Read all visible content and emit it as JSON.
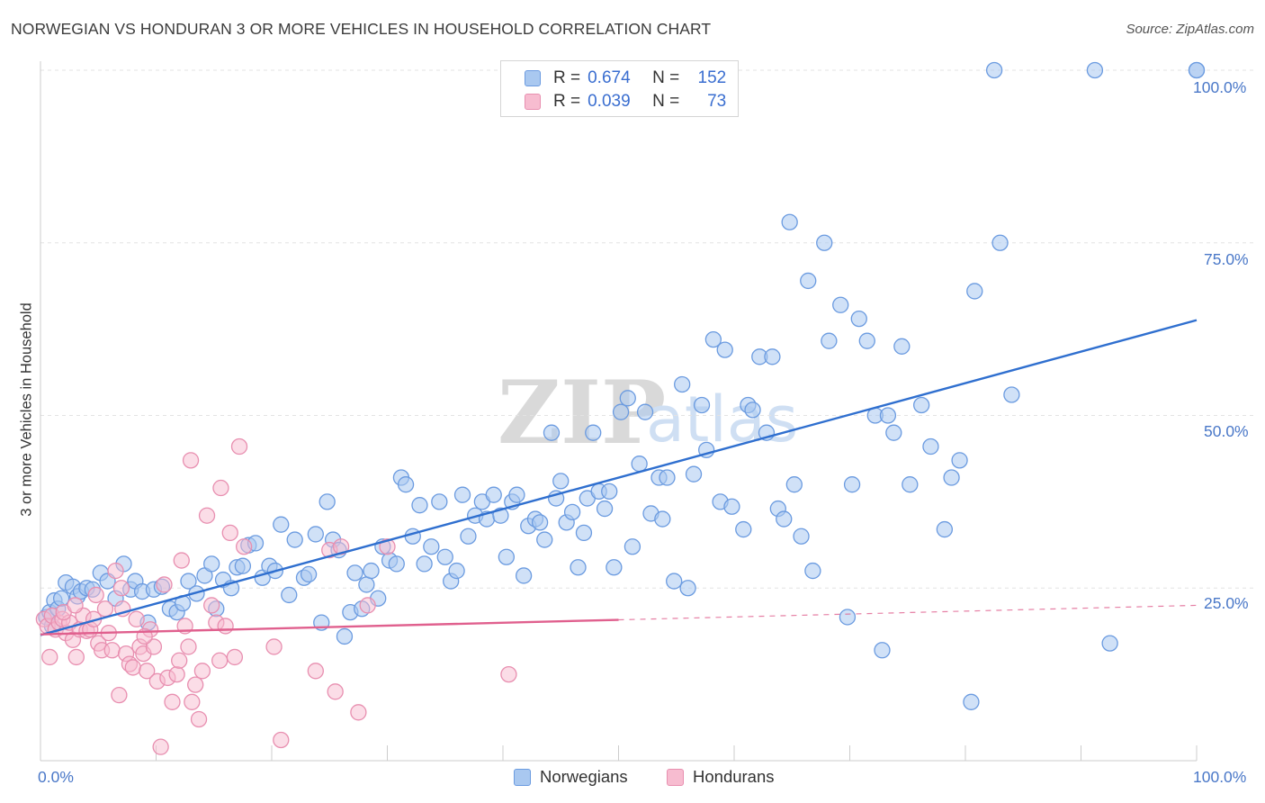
{
  "title": "NORWEGIAN VS HONDURAN 3 OR MORE VEHICLES IN HOUSEHOLD CORRELATION CHART",
  "source": "Source: ZipAtlas.com",
  "watermark": {
    "zip": "ZIP",
    "atlas": "atlas"
  },
  "legend": {
    "rows": [
      {
        "r_label": "R =",
        "r_value": "0.674",
        "n_label": "N =",
        "n_value": "152",
        "color": "#a9c8f0",
        "border": "#6b9be0"
      },
      {
        "r_label": "R =",
        "r_value": "0.039",
        "n_label": "N =",
        "n_value": "73",
        "color": "#f7bcd0",
        "border": "#e88fb0"
      }
    ]
  },
  "bottom_legend": [
    "Norwegians",
    "Hondurans"
  ],
  "axis_labels": {
    "x_min": "0.0%",
    "x_max": "100.0%",
    "y_25": "25.0%",
    "y_50": "50.0%",
    "y_75": "75.0%",
    "y_100": "100.0%"
  },
  "chart_data": {
    "type": "scatter",
    "title": "NORWEGIAN VS HONDURAN 3 OR MORE VEHICLES IN HOUSEHOLD CORRELATION CHART",
    "xlabel": "",
    "ylabel": "3 or more Vehicles in Household",
    "xlim": [
      0,
      100
    ],
    "ylim": [
      0,
      100
    ],
    "x_ticks": [
      0,
      10,
      20,
      30,
      40,
      50,
      60,
      70,
      80,
      90,
      100
    ],
    "y_ticks": [
      25,
      50,
      75,
      100
    ],
    "grid": true,
    "colors": {
      "norwegians": "#6b9be0",
      "norwegians_fill": "#a9c8f0",
      "hondurans": "#e88fb0",
      "hondurans_fill": "#f7bcd0",
      "trend_norwegians": "#2f6fcf",
      "trend_hondurans": "#e0608e"
    },
    "series": [
      {
        "name": "Norwegians",
        "trend": {
          "x": [
            0,
            100
          ],
          "y": [
            18.2,
            63.8
          ]
        },
        "points": [
          [
            0.5,
            20.8
          ],
          [
            0.8,
            21.5
          ],
          [
            1.0,
            19.5
          ],
          [
            1.2,
            23.2
          ],
          [
            1.5,
            22.0
          ],
          [
            1.8,
            23.5
          ],
          [
            2.2,
            25.8
          ],
          [
            2.8,
            25.2
          ],
          [
            3.2,
            23.8
          ],
          [
            3.5,
            24.5
          ],
          [
            4.0,
            25.0
          ],
          [
            4.5,
            24.8
          ],
          [
            5.2,
            27.2
          ],
          [
            5.8,
            26.0
          ],
          [
            6.5,
            23.5
          ],
          [
            7.2,
            28.5
          ],
          [
            7.8,
            24.8
          ],
          [
            8.2,
            26.0
          ],
          [
            8.8,
            24.5
          ],
          [
            9.3,
            20.0
          ],
          [
            9.8,
            24.8
          ],
          [
            10.5,
            25.2
          ],
          [
            11.2,
            22.0
          ],
          [
            11.8,
            21.5
          ],
          [
            12.3,
            22.8
          ],
          [
            12.8,
            26.0
          ],
          [
            13.5,
            24.2
          ],
          [
            14.2,
            26.8
          ],
          [
            14.8,
            28.5
          ],
          [
            15.2,
            22.0
          ],
          [
            15.8,
            26.2
          ],
          [
            16.5,
            25.0
          ],
          [
            17.0,
            28.0
          ],
          [
            17.5,
            28.2
          ],
          [
            18.0,
            31.2
          ],
          [
            18.6,
            31.5
          ],
          [
            19.2,
            26.5
          ],
          [
            19.8,
            28.2
          ],
          [
            20.3,
            27.5
          ],
          [
            20.8,
            34.2
          ],
          [
            21.5,
            24.0
          ],
          [
            22.0,
            32.0
          ],
          [
            22.8,
            26.5
          ],
          [
            23.2,
            27.0
          ],
          [
            23.8,
            32.8
          ],
          [
            24.3,
            20.0
          ],
          [
            24.8,
            37.5
          ],
          [
            25.3,
            32.0
          ],
          [
            25.8,
            30.5
          ],
          [
            26.3,
            18.0
          ],
          [
            26.8,
            21.5
          ],
          [
            27.2,
            27.2
          ],
          [
            27.8,
            22.0
          ],
          [
            28.2,
            25.5
          ],
          [
            28.6,
            27.5
          ],
          [
            29.2,
            23.5
          ],
          [
            29.6,
            31.0
          ],
          [
            30.2,
            29.0
          ],
          [
            30.8,
            28.5
          ],
          [
            31.2,
            41.0
          ],
          [
            31.6,
            40.0
          ],
          [
            32.2,
            32.5
          ],
          [
            32.8,
            37.0
          ],
          [
            33.2,
            28.5
          ],
          [
            33.8,
            31.0
          ],
          [
            34.5,
            37.5
          ],
          [
            35.0,
            29.5
          ],
          [
            35.5,
            26.0
          ],
          [
            36.0,
            27.5
          ],
          [
            36.5,
            38.5
          ],
          [
            37.0,
            32.5
          ],
          [
            37.6,
            35.5
          ],
          [
            38.2,
            37.5
          ],
          [
            38.6,
            35.0
          ],
          [
            39.2,
            38.5
          ],
          [
            39.8,
            35.5
          ],
          [
            40.3,
            29.5
          ],
          [
            40.8,
            37.5
          ],
          [
            41.2,
            38.5
          ],
          [
            41.8,
            26.8
          ],
          [
            42.2,
            34.0
          ],
          [
            42.8,
            35.0
          ],
          [
            43.2,
            34.5
          ],
          [
            43.6,
            32.0
          ],
          [
            44.2,
            47.5
          ],
          [
            44.6,
            38.0
          ],
          [
            45.0,
            40.5
          ],
          [
            45.5,
            34.5
          ],
          [
            46.0,
            36.0
          ],
          [
            46.5,
            28.0
          ],
          [
            47.0,
            33.0
          ],
          [
            47.3,
            38.0
          ],
          [
            47.8,
            47.5
          ],
          [
            48.3,
            39.0
          ],
          [
            48.8,
            36.5
          ],
          [
            49.2,
            39.0
          ],
          [
            49.6,
            28.0
          ],
          [
            50.2,
            50.5
          ],
          [
            50.8,
            52.5
          ],
          [
            51.2,
            31.0
          ],
          [
            51.8,
            43.0
          ],
          [
            52.3,
            50.5
          ],
          [
            52.8,
            35.8
          ],
          [
            53.5,
            41.0
          ],
          [
            53.8,
            35.0
          ],
          [
            54.2,
            41.0
          ],
          [
            54.8,
            26.0
          ],
          [
            55.5,
            54.5
          ],
          [
            56.0,
            25.0
          ],
          [
            56.5,
            41.5
          ],
          [
            57.2,
            51.5
          ],
          [
            57.6,
            45.0
          ],
          [
            58.2,
            61.0
          ],
          [
            58.8,
            37.5
          ],
          [
            59.2,
            59.5
          ],
          [
            59.8,
            36.8
          ],
          [
            60.8,
            33.5
          ],
          [
            61.2,
            51.5
          ],
          [
            61.6,
            50.8
          ],
          [
            62.2,
            58.5
          ],
          [
            62.8,
            47.5
          ],
          [
            63.3,
            58.5
          ],
          [
            63.8,
            36.5
          ],
          [
            64.3,
            35.0
          ],
          [
            64.8,
            78.0
          ],
          [
            65.2,
            40.0
          ],
          [
            65.8,
            32.5
          ],
          [
            66.4,
            69.5
          ],
          [
            66.8,
            27.5
          ],
          [
            67.8,
            75.0
          ],
          [
            68.2,
            60.8
          ],
          [
            69.2,
            66.0
          ],
          [
            69.8,
            20.8
          ],
          [
            70.2,
            40.0
          ],
          [
            70.8,
            64.0
          ],
          [
            71.5,
            60.8
          ],
          [
            72.2,
            50.0
          ],
          [
            72.8,
            16.0
          ],
          [
            73.3,
            50.0
          ],
          [
            73.8,
            47.5
          ],
          [
            74.5,
            60.0
          ],
          [
            75.2,
            40.0
          ],
          [
            76.2,
            51.5
          ],
          [
            77.0,
            45.5
          ],
          [
            78.2,
            33.5
          ],
          [
            78.8,
            41.0
          ],
          [
            79.5,
            43.5
          ],
          [
            80.5,
            8.5
          ],
          [
            80.8,
            68.0
          ],
          [
            82.5,
            100.0
          ],
          [
            83.0,
            75.0
          ],
          [
            84.0,
            53.0
          ],
          [
            91.2,
            100.0
          ],
          [
            92.5,
            17.0
          ],
          [
            100.0,
            100.0
          ],
          [
            100.0,
            100.0
          ]
        ]
      },
      {
        "name": "Hondurans",
        "trend": {
          "x": [
            0,
            50
          ],
          "y": [
            18.3,
            20.4
          ],
          "dashed_x": [
            50,
            100
          ],
          "dashed_y": [
            20.4,
            22.5
          ]
        },
        "points": [
          [
            0.3,
            20.5
          ],
          [
            0.6,
            19.5
          ],
          [
            0.8,
            15.0
          ],
          [
            1.0,
            21.0
          ],
          [
            1.3,
            19.0
          ],
          [
            1.6,
            20.0
          ],
          [
            1.9,
            20.5
          ],
          [
            2.2,
            18.5
          ],
          [
            2.5,
            20.0
          ],
          [
            2.8,
            17.5
          ],
          [
            3.1,
            15.0
          ],
          [
            3.4,
            19.0
          ],
          [
            3.7,
            21.0
          ],
          [
            4.0,
            18.8
          ],
          [
            4.3,
            19.0
          ],
          [
            4.6,
            20.5
          ],
          [
            5.0,
            17.0
          ],
          [
            5.3,
            16.0
          ],
          [
            5.6,
            22.0
          ],
          [
            5.9,
            18.5
          ],
          [
            6.2,
            16.0
          ],
          [
            6.5,
            27.5
          ],
          [
            6.8,
            9.5
          ],
          [
            7.1,
            22.0
          ],
          [
            7.4,
            15.5
          ],
          [
            7.7,
            14.0
          ],
          [
            8.0,
            13.5
          ],
          [
            8.3,
            20.5
          ],
          [
            8.6,
            16.5
          ],
          [
            8.9,
            15.5
          ],
          [
            9.2,
            13.0
          ],
          [
            9.5,
            19.0
          ],
          [
            9.8,
            16.5
          ],
          [
            10.1,
            11.5
          ],
          [
            10.4,
            2.0
          ],
          [
            10.7,
            25.5
          ],
          [
            11.0,
            12.0
          ],
          [
            11.4,
            8.5
          ],
          [
            11.8,
            12.5
          ],
          [
            12.2,
            29.0
          ],
          [
            12.5,
            19.5
          ],
          [
            12.8,
            16.5
          ],
          [
            13.1,
            8.5
          ],
          [
            13.4,
            11.0
          ],
          [
            13.7,
            6.0
          ],
          [
            14.0,
            13.0
          ],
          [
            14.4,
            35.5
          ],
          [
            14.8,
            22.5
          ],
          [
            15.2,
            20.0
          ],
          [
            15.6,
            39.5
          ],
          [
            16.0,
            19.5
          ],
          [
            16.4,
            33.0
          ],
          [
            16.8,
            15.0
          ],
          [
            17.2,
            45.5
          ],
          [
            17.6,
            31.0
          ],
          [
            13.0,
            43.5
          ],
          [
            20.2,
            16.5
          ],
          [
            20.8,
            3.0
          ],
          [
            23.8,
            13.0
          ],
          [
            25.0,
            30.5
          ],
          [
            25.5,
            10.0
          ],
          [
            26.0,
            31.0
          ],
          [
            27.5,
            7.0
          ],
          [
            28.3,
            22.5
          ],
          [
            30.0,
            31.0
          ],
          [
            40.5,
            12.5
          ],
          [
            12.0,
            14.5
          ],
          [
            9.0,
            18.0
          ],
          [
            4.8,
            24.0
          ],
          [
            2.0,
            21.5
          ],
          [
            3.0,
            22.5
          ],
          [
            7.0,
            25.0
          ],
          [
            15.5,
            14.5
          ]
        ]
      }
    ]
  }
}
